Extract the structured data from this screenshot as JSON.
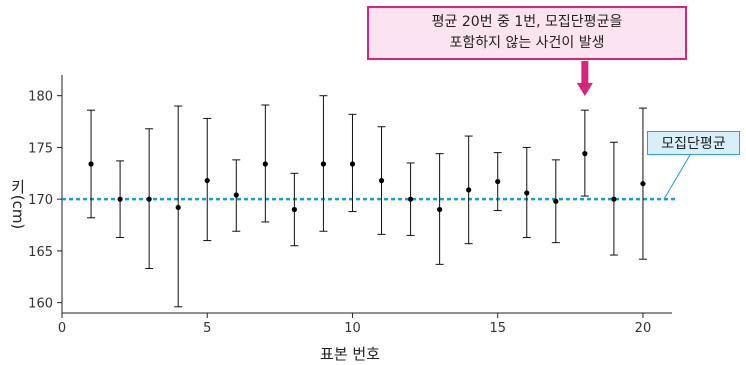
{
  "chart_data": {
    "type": "scatter",
    "subtype": "point-with-error-bars",
    "xlabel": "표본 번호",
    "ylabel": "키(cm)",
    "xlim": [
      0,
      21
    ],
    "ylim": [
      159,
      182
    ],
    "xticks": [
      0,
      5,
      10,
      15,
      20
    ],
    "yticks": [
      160,
      165,
      170,
      175,
      180
    ],
    "grid": false,
    "reference_line": {
      "label": "모집단평균",
      "y": 170,
      "color": "#1a9ad6",
      "style": "dotted"
    },
    "annotation": {
      "lines": [
        "평균 20번 중 1번, 모집단평균을",
        "포함하지 않는 사건이 발생"
      ],
      "target_x": 18,
      "color": "#d6257a"
    },
    "points": [
      {
        "x": 1,
        "y": 173.4,
        "low": 168.2,
        "high": 178.6
      },
      {
        "x": 2,
        "y": 170.0,
        "low": 166.3,
        "high": 173.7
      },
      {
        "x": 3,
        "y": 170.0,
        "low": 163.3,
        "high": 176.8
      },
      {
        "x": 4,
        "y": 169.2,
        "low": 159.6,
        "high": 179.0
      },
      {
        "x": 5,
        "y": 171.8,
        "low": 166.0,
        "high": 177.8
      },
      {
        "x": 6,
        "y": 170.4,
        "low": 166.9,
        "high": 173.8
      },
      {
        "x": 7,
        "y": 173.4,
        "low": 167.8,
        "high": 179.1
      },
      {
        "x": 8,
        "y": 169.0,
        "low": 165.5,
        "high": 172.5
      },
      {
        "x": 9,
        "y": 173.4,
        "low": 166.9,
        "high": 180.0
      },
      {
        "x": 10,
        "y": 173.4,
        "low": 168.8,
        "high": 178.2
      },
      {
        "x": 11,
        "y": 171.8,
        "low": 166.6,
        "high": 177.0
      },
      {
        "x": 12,
        "y": 170.0,
        "low": 166.5,
        "high": 173.5
      },
      {
        "x": 13,
        "y": 169.0,
        "low": 163.7,
        "high": 174.4
      },
      {
        "x": 14,
        "y": 170.9,
        "low": 165.7,
        "high": 176.1
      },
      {
        "x": 15,
        "y": 171.7,
        "low": 168.9,
        "high": 174.5
      },
      {
        "x": 16,
        "y": 170.6,
        "low": 166.3,
        "high": 175.0
      },
      {
        "x": 17,
        "y": 169.8,
        "low": 165.8,
        "high": 173.8
      },
      {
        "x": 18,
        "y": 174.4,
        "low": 170.3,
        "high": 178.6
      },
      {
        "x": 19,
        "y": 170.0,
        "low": 164.6,
        "high": 175.5
      },
      {
        "x": 20,
        "y": 171.5,
        "low": 164.2,
        "high": 178.8
      }
    ]
  }
}
